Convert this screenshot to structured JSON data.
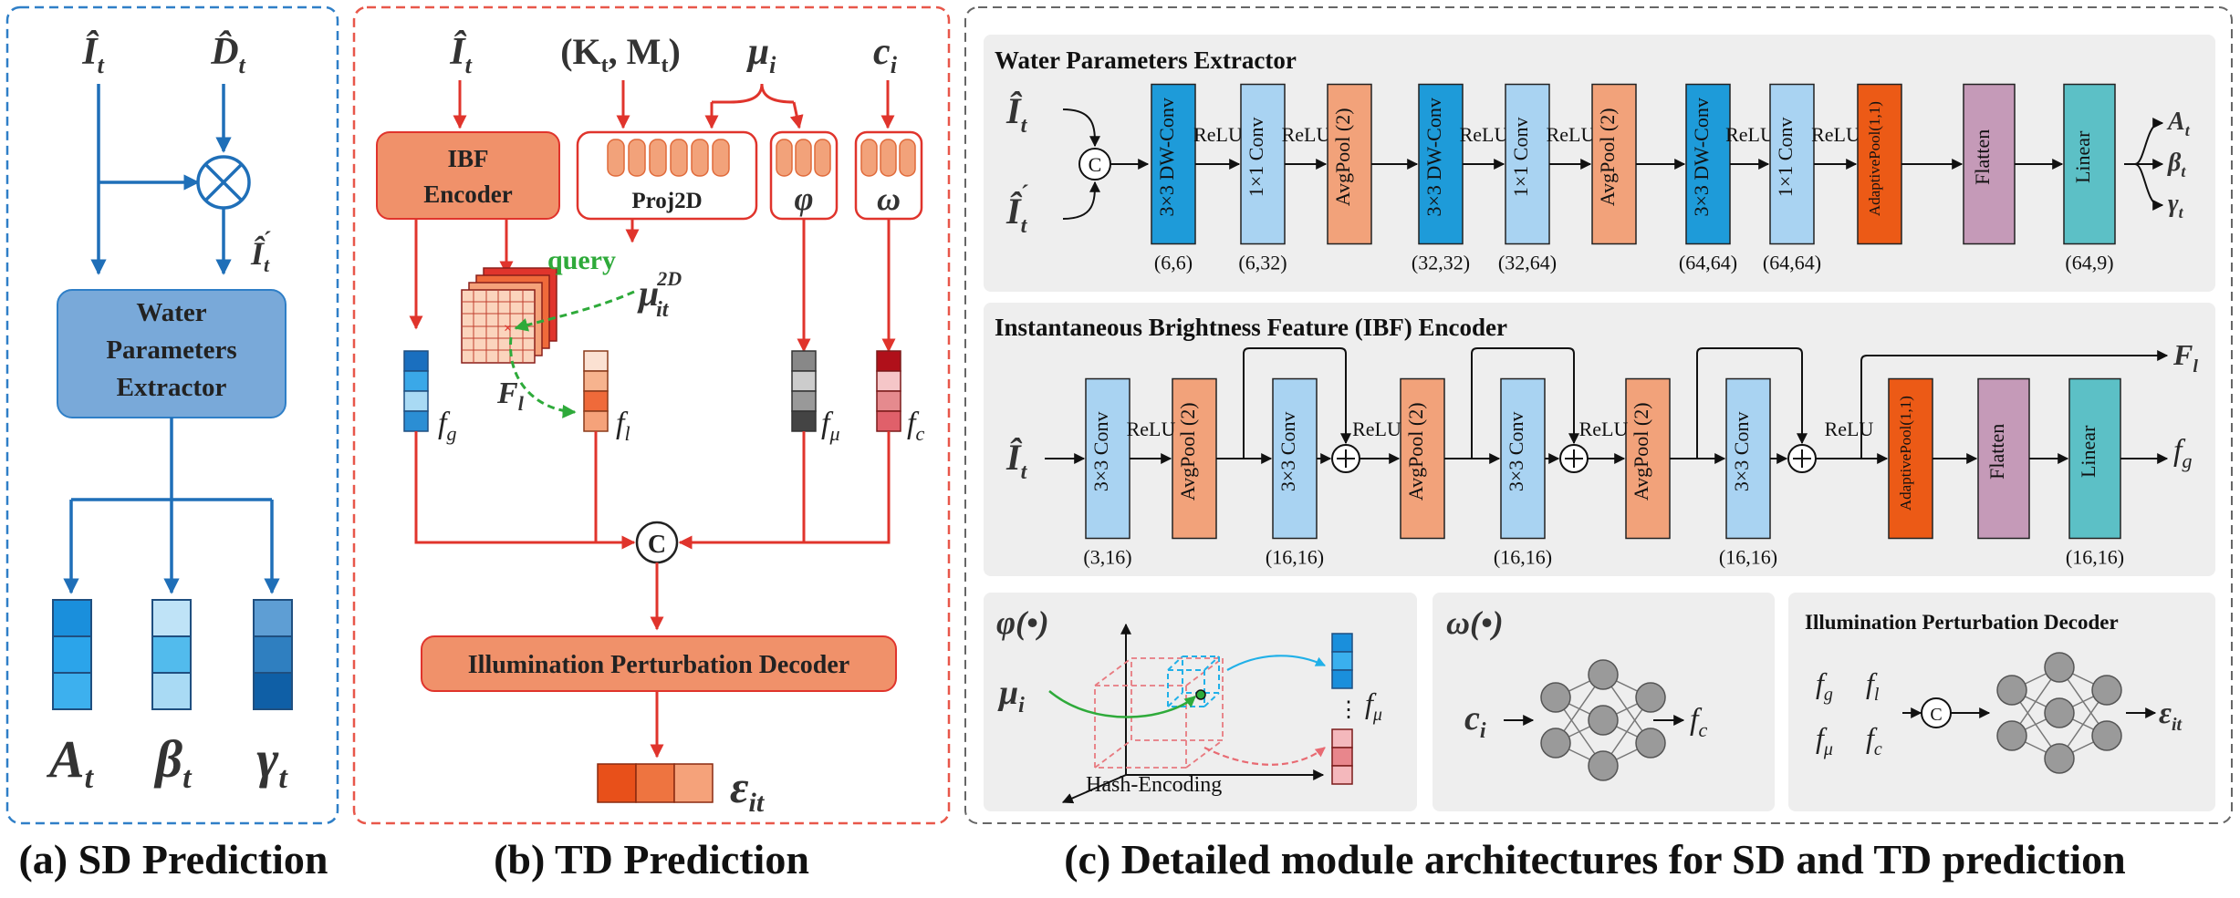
{
  "colors": {
    "blue_dash": "#2f7fc7",
    "red_dash": "#e8574a",
    "sd_box": "#79a9d9",
    "sd_arrow": "#1f6fb8",
    "td_arrow": "#e0342c",
    "ibf_box": "#f0916a",
    "query_green": "#2eaa3a",
    "dwconv": "#1e9bd9",
    "conv1x1": "#a9d3f2",
    "avgpool": "#f2a27a",
    "adaptive": "#ec5a16",
    "flatten": "#c59ab8",
    "linear": "#5cc0c6",
    "panel_gray": "#eeeeee"
  },
  "captions": {
    "a": "(a) SD Prediction",
    "b": "(b) TD Prediction",
    "c": "(c)  Detailed module architectures for SD and TD prediction"
  },
  "panel_a": {
    "input_i": "Î",
    "input_i_sub": "t",
    "input_d": "D̂",
    "input_d_sub": "t",
    "mid_i": "Î",
    "mid_i_sub": "t",
    "mid_i_prime": "´",
    "extractor_lines": [
      "Water",
      "Parameters",
      "Extractor"
    ],
    "outputs": [
      {
        "sym": "A",
        "sub": "t"
      },
      {
        "sym": "β",
        "sub": "t"
      },
      {
        "sym": "γ",
        "sub": "t"
      }
    ]
  },
  "panel_b": {
    "input_i": "Î",
    "input_i_sub": "t",
    "input_km": "(K",
    "input_km_sub1": "t",
    "input_km_mid": ", M",
    "input_km_sub2": "t",
    "input_km_end": ")",
    "input_mu": "μ",
    "input_mu_sub": "i",
    "input_c": "c",
    "input_c_sub": "i",
    "ibf_lines": [
      "IBF",
      "Encoder"
    ],
    "proj_label": "Proj2D",
    "phi_label": "φ",
    "omega_label": "ω",
    "query_label": "query",
    "mu2d": "μ",
    "mu2d_sub": "it",
    "mu2d_sup": "2D",
    "fl_grid": "F",
    "fl_grid_sub": "l",
    "fg": "f",
    "fg_sub": "g",
    "fl": "f",
    "fl_sub": "l",
    "fmu": "f",
    "fmu_sub": "μ",
    "fc": "f",
    "fc_sub": "c",
    "concat": "C",
    "decoder_label": "Illumination Perturbation Decoder",
    "eps": "ε",
    "eps_sub": "it"
  },
  "panel_c": {
    "wpe": {
      "title": "Water Parameters Extractor",
      "in1": "Î",
      "in1_sub": "t",
      "in2": "Î",
      "in2_sub": "t",
      "in2_prime": "´",
      "concat": "C",
      "blocks": [
        {
          "label": "3×3 DW-Conv",
          "dim": "(6,6)"
        },
        {
          "label": "1×1 Conv",
          "dim": "(6,32)"
        },
        {
          "label": "AvgPool (2)",
          "dim": ""
        },
        {
          "label": "3×3 DW-Conv",
          "dim": "(32,32)"
        },
        {
          "label": "1×1 Conv",
          "dim": "(32,64)"
        },
        {
          "label": "AvgPool (2)",
          "dim": ""
        },
        {
          "label": "3×3 DW-Conv",
          "dim": "(64,64)"
        },
        {
          "label": "1×1 Conv",
          "dim": "(64,64)"
        },
        {
          "label": "AdaptivePool(1,1)",
          "dim": ""
        },
        {
          "label": "Flatten",
          "dim": ""
        },
        {
          "label": "Linear",
          "dim": "(64,9)"
        }
      ],
      "relu": "ReLU",
      "outs": [
        {
          "sym": "A",
          "sub": "t"
        },
        {
          "sym": "β",
          "sub": "t"
        },
        {
          "sym": "γ",
          "sub": "t"
        }
      ]
    },
    "ibf": {
      "title": "Instantaneous Brightness Feature (IBF) Encoder",
      "in": "Î",
      "in_sub": "t",
      "blocks": [
        {
          "label": "3×3 Conv",
          "dim": "(3,16)"
        },
        {
          "label": "AvgPool (2)",
          "dim": ""
        },
        {
          "label": "3×3 Conv",
          "dim": "(16,16)"
        },
        {
          "label": "AvgPool (2)",
          "dim": ""
        },
        {
          "label": "3×3 Conv",
          "dim": "(16,16)"
        },
        {
          "label": "AvgPool (2)",
          "dim": ""
        },
        {
          "label": "3×3 Conv",
          "dim": "(16,16)"
        },
        {
          "label": "AdaptivePool(1,1)",
          "dim": ""
        },
        {
          "label": "Flatten",
          "dim": ""
        },
        {
          "label": "Linear",
          "dim": "(16,16)"
        }
      ],
      "relu": "ReLU",
      "out_fl": "F",
      "out_fl_sub": "l",
      "out_fg": "f",
      "out_fg_sub": "g"
    },
    "phi": {
      "title": "φ(•)",
      "mu": "μ",
      "mu_sub": "i",
      "hash": "Hash-Encoding",
      "dots": "⋮",
      "fmu": "f",
      "fmu_sub": "μ"
    },
    "omega": {
      "title": "ω(•)",
      "c": "c",
      "c_sub": "i",
      "fc": "f",
      "fc_sub": "c"
    },
    "ipd": {
      "title": "Illumination Perturbation Decoder",
      "fg": "f",
      "fg_sub": "g",
      "fl": "f",
      "fl_sub": "l",
      "fmu": "f",
      "fmu_sub": "μ",
      "fc": "f",
      "fc_sub": "c",
      "concat": "C",
      "eps": "ε",
      "eps_sub": "it"
    }
  }
}
